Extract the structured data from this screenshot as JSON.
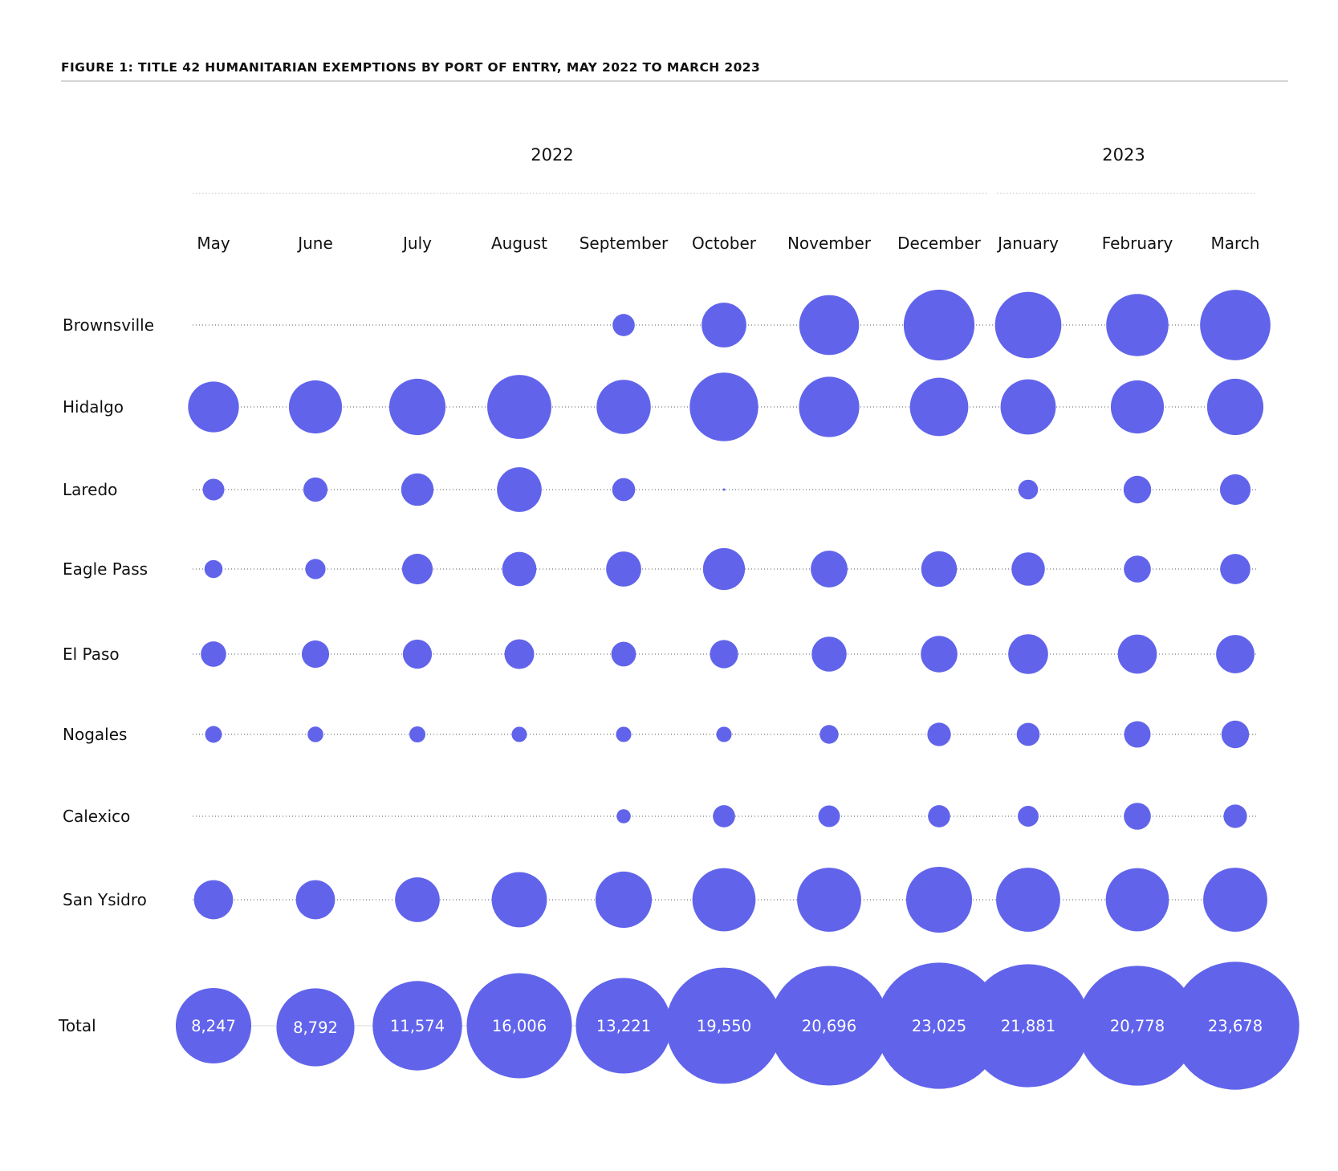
{
  "figure_title": "FIGURE 1: TITLE 42 HUMANITARIAN EXEMPTIONS BY PORT OF ENTRY, MAY 2022 TO MARCH 2023",
  "colors": {
    "bubble": "#6164EA",
    "text": "#111111",
    "rule": "#c9c9c9",
    "dotted": "#555555"
  },
  "chart_data": {
    "type": "bubble",
    "years": [
      {
        "label": "2022",
        "months": [
          "May",
          "June",
          "July",
          "August",
          "September",
          "October",
          "November",
          "December"
        ]
      },
      {
        "label": "2023",
        "months": [
          "January",
          "February",
          "March"
        ]
      }
    ],
    "categories": [
      "May",
      "June",
      "July",
      "August",
      "September",
      "October",
      "November",
      "December",
      "January",
      "February",
      "March"
    ],
    "series": [
      {
        "name": "Brownsville",
        "values": [
          0,
          0,
          0,
          0,
          420,
          1700,
          3050,
          4270,
          3750,
          3300,
          4220
        ]
      },
      {
        "name": "Hidalgo",
        "values": [
          2200,
          2400,
          2700,
          3500,
          2500,
          4000,
          3100,
          2900,
          2600,
          2400,
          2700
        ]
      },
      {
        "name": "Laredo",
        "values": [
          400,
          500,
          900,
          1700,
          450,
          5,
          0,
          0,
          330,
          650,
          800
        ]
      },
      {
        "name": "Eagle Pass",
        "values": [
          280,
          350,
          800,
          1000,
          1050,
          1500,
          1150,
          1090,
          950,
          620,
          780
        ]
      },
      {
        "name": "El Paso",
        "values": [
          550,
          640,
          720,
          750,
          520,
          680,
          1040,
          1140,
          1350,
          1300,
          1250
        ]
      },
      {
        "name": "Nogales",
        "values": [
          240,
          210,
          220,
          200,
          200,
          200,
          300,
          470,
          450,
          600,
          650
        ]
      },
      {
        "name": "Calexico",
        "values": [
          0,
          0,
          0,
          0,
          170,
          420,
          400,
          420,
          370,
          620,
          470
        ]
      },
      {
        "name": "San Ysidro",
        "values": [
          1300,
          1300,
          1700,
          2600,
          2700,
          3400,
          3500,
          3700,
          3500,
          3400,
          3500
        ]
      }
    ],
    "totals": {
      "name": "Total",
      "values": [
        8247,
        8792,
        11574,
        16006,
        13221,
        19550,
        20696,
        23025,
        21881,
        20778,
        23678
      ],
      "labels": [
        "8,247",
        "8,792",
        "11,574",
        "16,006",
        "13,221",
        "19,550",
        "20,696",
        "23,025",
        "21,881",
        "20,778",
        "23,678"
      ]
    }
  }
}
